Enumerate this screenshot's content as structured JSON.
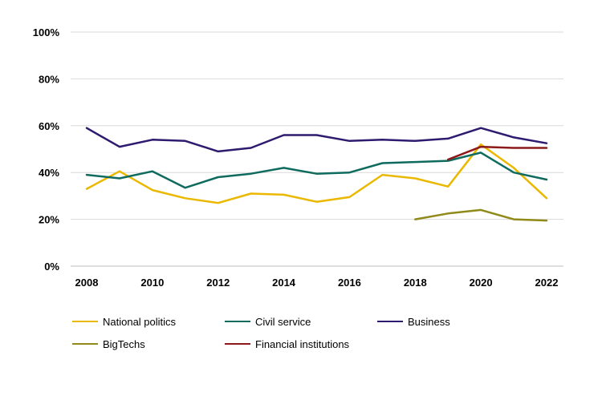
{
  "chart_data": {
    "type": "line",
    "title": "",
    "xlabel": "",
    "ylabel": "",
    "x": [
      2008,
      2009,
      2010,
      2011,
      2012,
      2013,
      2014,
      2015,
      2016,
      2017,
      2018,
      2019,
      2020,
      2021,
      2022
    ],
    "x_ticks": [
      "2008",
      "2010",
      "2012",
      "2014",
      "2016",
      "2018",
      "2020",
      "2022"
    ],
    "y_ticks": [
      "0%",
      "20%",
      "40%",
      "60%",
      "80%",
      "100%"
    ],
    "ylim": [
      0,
      100
    ],
    "grid": "horizontal",
    "legend_position": "bottom",
    "series": [
      {
        "name": "National politics",
        "color": "#ebb800",
        "values": [
          33,
          40.5,
          32.5,
          29,
          27,
          31,
          30.5,
          27.5,
          29.5,
          39,
          37.5,
          34,
          52,
          42,
          29
        ]
      },
      {
        "name": "Civil service",
        "color": "#0e6b5e",
        "values": [
          39,
          37.5,
          40.5,
          33.5,
          38,
          39.5,
          42,
          39.5,
          40,
          44,
          44.5,
          45,
          48.5,
          40,
          37
        ]
      },
      {
        "name": "Business",
        "color": "#2e1a6e",
        "values": [
          59,
          51,
          54,
          53.5,
          49,
          50.5,
          56,
          56,
          53.5,
          54,
          53.5,
          54.5,
          59,
          55,
          52.5
        ]
      },
      {
        "name": "BigTechs",
        "color": "#8f8a1a",
        "values": [
          null,
          null,
          null,
          null,
          null,
          null,
          null,
          null,
          null,
          null,
          20,
          22.5,
          24,
          20,
          19.5
        ]
      },
      {
        "name": "Financial institutions",
        "color": "#8c1a1a",
        "values": [
          null,
          null,
          null,
          null,
          null,
          null,
          null,
          null,
          null,
          null,
          null,
          45.5,
          51,
          50.5,
          50.5
        ]
      }
    ]
  }
}
